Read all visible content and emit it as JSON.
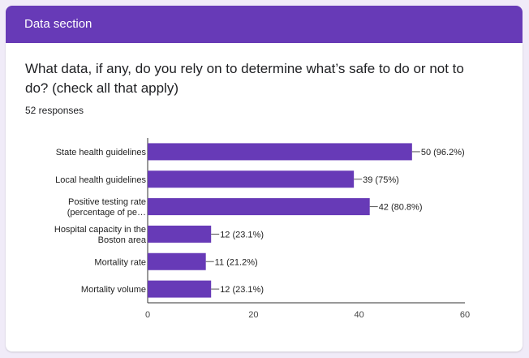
{
  "section": {
    "title": "Data section"
  },
  "question": {
    "text": "What data, if any, do you rely on to determine what’s safe to do or not to do? (check all that apply)",
    "responses": "52 responses"
  },
  "colors": {
    "accent": "#673ab7",
    "bar": "#673ab7",
    "background": "#f0ebf8"
  },
  "chart_data": {
    "type": "bar",
    "orientation": "horizontal",
    "categories": [
      [
        "State health guidelines"
      ],
      [
        "Local health guidelines"
      ],
      [
        "Positive testing rate",
        "(percentage of pe…"
      ],
      [
        "Hospital capacity in the",
        "Boston area"
      ],
      [
        "Mortality rate"
      ],
      [
        "Mortality volume"
      ]
    ],
    "values": [
      50,
      39,
      42,
      12,
      11,
      12
    ],
    "value_labels": [
      "50 (96.2%)",
      "39 (75%)",
      "42 (80.8%)",
      "12 (23.1%)",
      "11 (21.2%)",
      "12 (23.1%)"
    ],
    "xlim": [
      0,
      60
    ],
    "xticks": [
      0,
      20,
      40,
      60
    ],
    "title": "",
    "xlabel": "",
    "ylabel": ""
  }
}
